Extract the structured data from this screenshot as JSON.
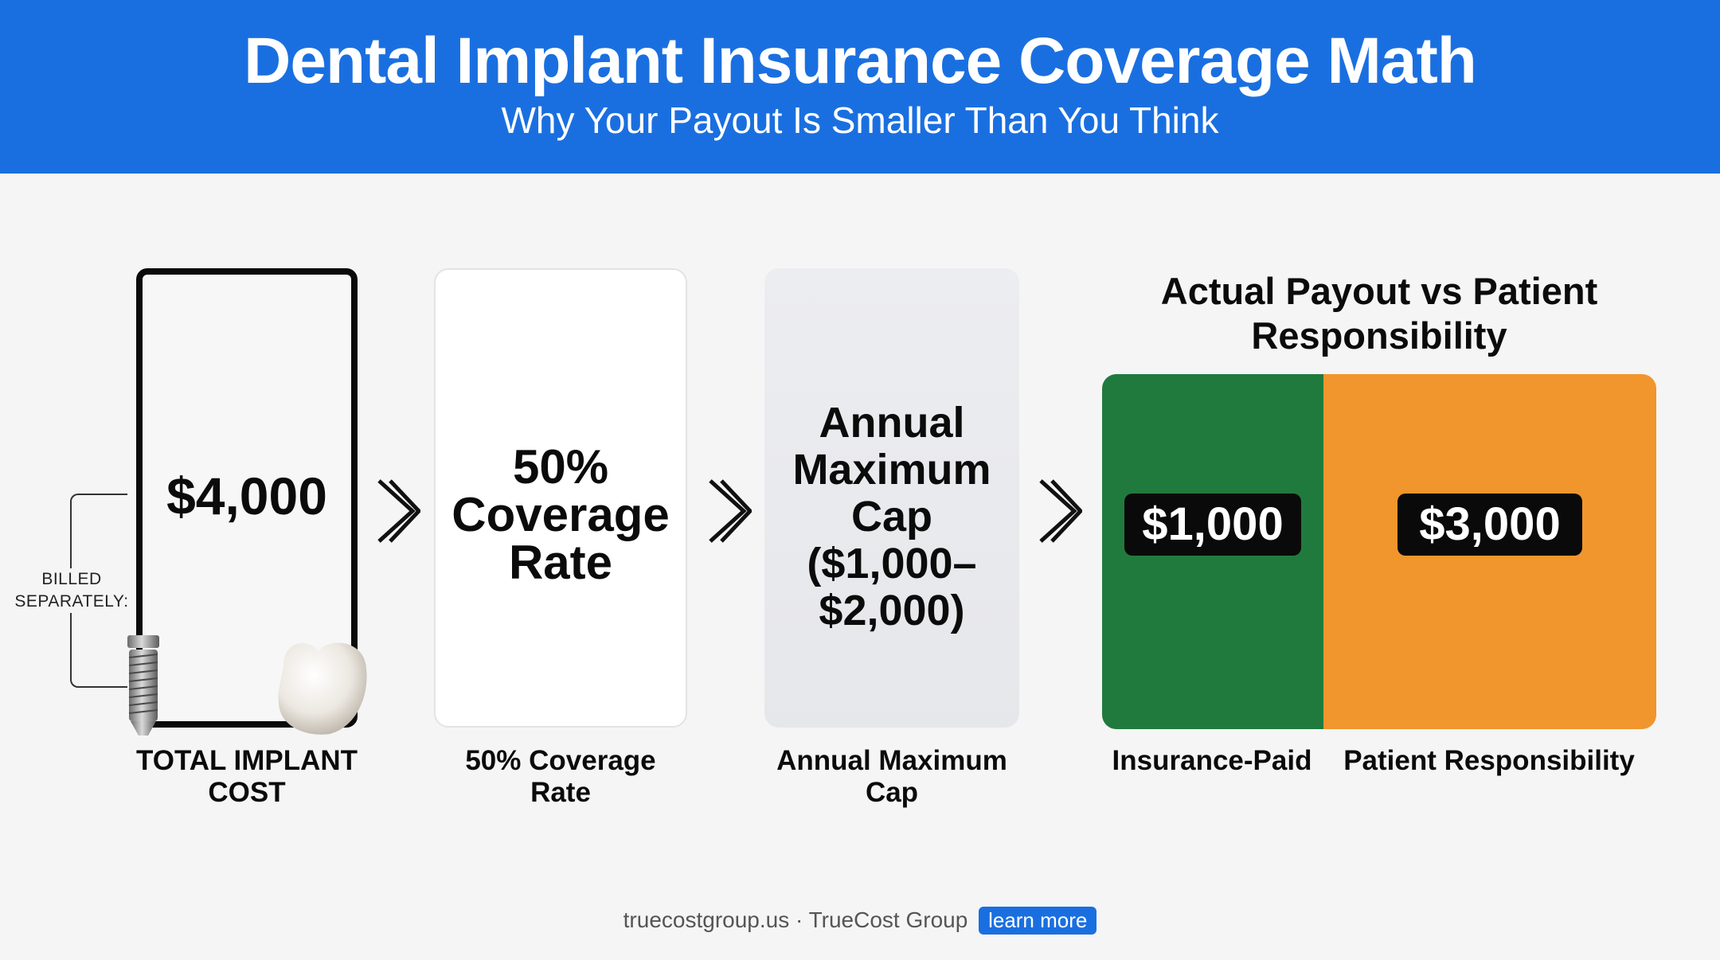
{
  "header": {
    "title": "Dental Implant Insurance Coverage Math",
    "subtitle": "Why Your Payout Is Smaller Than You Think"
  },
  "steps": [
    {
      "value": "$4,000",
      "caption": "TOTAL IMPLANT COST"
    },
    {
      "value": "50% Coverage Rate",
      "caption": "50% Coverage Rate"
    },
    {
      "value": "Annual Maximum Cap ($1,000–$2,000)",
      "caption": "Annual Maximum Cap"
    }
  ],
  "billed_note": "BILLED SEPARATELY:",
  "icons": {
    "arrow": "chevron-right-icon",
    "implant_post": "implant-screw-icon",
    "crown": "tooth-crown-icon"
  },
  "payout": {
    "title": "Actual Payout vs Patient Responsibility",
    "insurance_paid": 1000,
    "patient_responsibility": 3000,
    "insurance_label": "$1,000",
    "patient_label": "$3,000",
    "insurance_caption": "Insurance-Paid",
    "patient_caption": "Patient Responsibility",
    "colors": {
      "insurance": "#217a3d",
      "patient": "#f0962c"
    }
  },
  "footer": {
    "text": "truecostgroup.us · TrueCost Group",
    "link": "learn more"
  },
  "colors": {
    "brand": "#1a6fe0"
  }
}
